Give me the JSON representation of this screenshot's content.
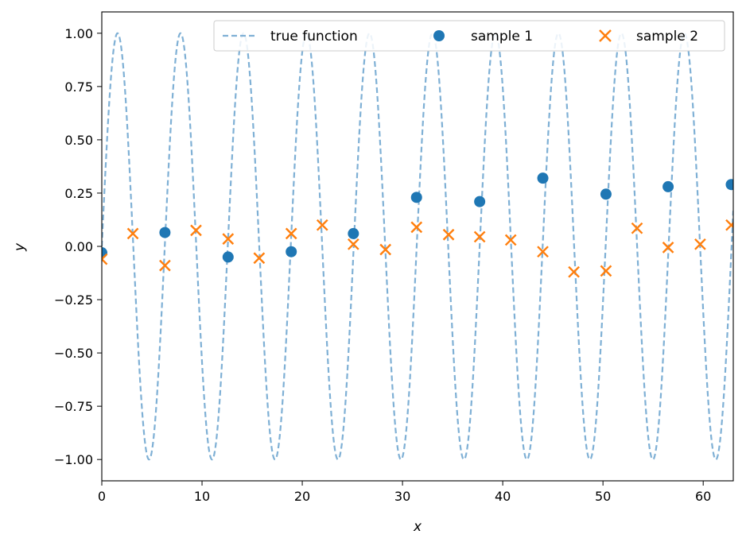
{
  "chart_data": {
    "type": "scatter",
    "title": "",
    "xlabel": "x",
    "ylabel": "y",
    "xlim": [
      0,
      63
    ],
    "ylim": [
      -1.1,
      1.1
    ],
    "xticks": [
      0,
      10,
      20,
      30,
      40,
      50,
      60
    ],
    "yticks": [
      -1.0,
      -0.75,
      -0.5,
      -0.25,
      0.0,
      0.25,
      0.5,
      0.75,
      1.0
    ],
    "ytick_labels": [
      "−1.00",
      "−0.75",
      "−0.50",
      "−0.25",
      "0.00",
      "0.25",
      "0.50",
      "0.75",
      "1.00"
    ],
    "xtick_labels": [
      "0",
      "10",
      "20",
      "30",
      "40",
      "50",
      "60"
    ],
    "grid": false,
    "legend_position": "top-right",
    "true_function": {
      "name": "true function",
      "expression": "sin(x)",
      "style": "dashed",
      "color": "#7fb0d5"
    },
    "series": [
      {
        "name": "sample 1",
        "marker": "circle",
        "color": "#1f77b4",
        "x": [
          0.0,
          6.3,
          12.6,
          18.9,
          25.1,
          31.4,
          37.7,
          44.0,
          50.3,
          56.5,
          62.8
        ],
        "y": [
          -0.03,
          0.065,
          -0.05,
          -0.025,
          0.06,
          0.23,
          0.21,
          0.32,
          0.245,
          0.28,
          0.29
        ]
      },
      {
        "name": "sample 2",
        "marker": "x",
        "color": "#ff7f0e",
        "x": [
          0.0,
          3.1,
          6.3,
          9.4,
          12.6,
          15.7,
          18.9,
          22.0,
          25.1,
          28.3,
          31.4,
          34.6,
          37.7,
          40.8,
          44.0,
          47.1,
          50.3,
          53.4,
          56.5,
          59.7,
          62.8
        ],
        "y": [
          -0.06,
          0.06,
          -0.09,
          0.075,
          0.035,
          -0.055,
          0.06,
          0.1,
          0.01,
          -0.015,
          0.09,
          0.055,
          0.045,
          0.03,
          -0.025,
          -0.12,
          -0.115,
          0.085,
          -0.005,
          0.01,
          0.1
        ]
      }
    ]
  }
}
